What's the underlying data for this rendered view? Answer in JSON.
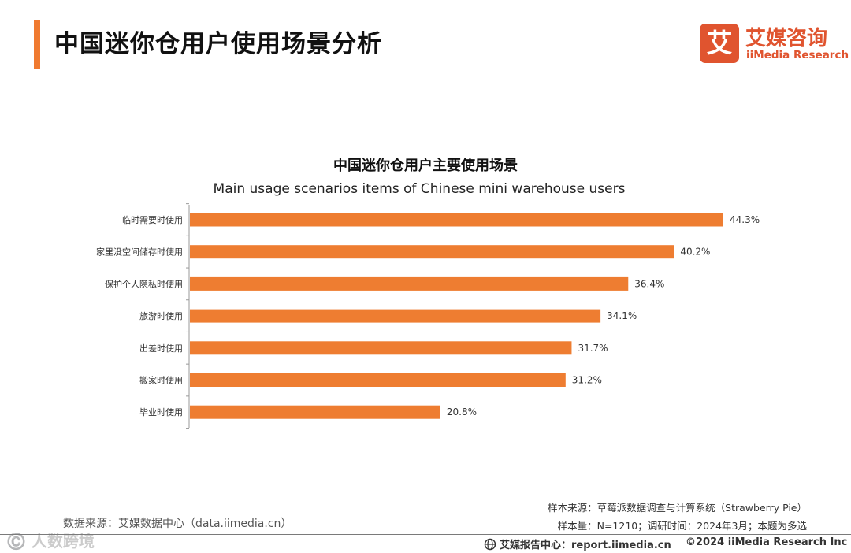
{
  "header": {
    "title": "中国迷你仓用户使用场景分析",
    "accent_color": "#f07a30"
  },
  "logo": {
    "mark_char": "艾",
    "name_cn": "艾媒咨询",
    "name_en": "iiMedia Research",
    "color": "#e0542f"
  },
  "chart_data": {
    "type": "bar",
    "orientation": "horizontal",
    "title": "中国迷你仓用户主要使用场景",
    "subtitle": "Main usage scenarios items of Chinese mini warehouse users",
    "categories": [
      "临时需要时使用",
      "家里没空间储存时使用",
      "保护个人隐私时使用",
      "旅游时使用",
      "出差时使用",
      "搬家时使用",
      "毕业时使用"
    ],
    "values": [
      44.3,
      40.2,
      36.4,
      34.1,
      31.7,
      31.2,
      20.8
    ],
    "value_labels": [
      "44.3%",
      "40.2%",
      "36.4%",
      "34.1%",
      "31.7%",
      "31.2%",
      "20.8%"
    ],
    "unit": "%",
    "xlim": [
      0,
      44.3
    ],
    "bar_color": "#ee7d31",
    "grid": false,
    "legend": "none"
  },
  "footer": {
    "data_source": "数据来源：艾媒数据中心（data.iimedia.cn）",
    "sample_source": "样本来源：草莓派数据调查与计算系统（Strawberry Pie）",
    "sample_info": "样本量：N=1210；调研时间：2024年3月；本题为多选",
    "report_center": "艾媒报告中心：report.iimedia.cn",
    "copyright": "©2024  iiMedia Research  Inc",
    "watermark": "©️ 人数跨境"
  }
}
